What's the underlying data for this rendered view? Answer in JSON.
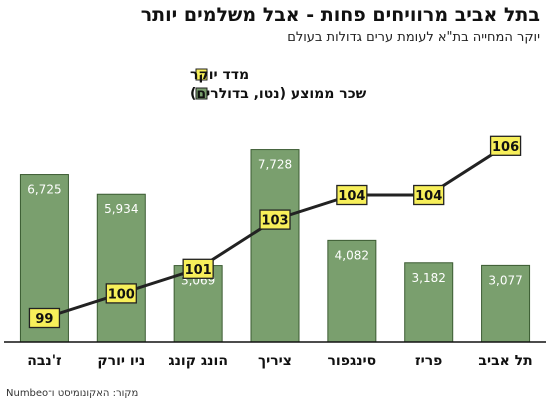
{
  "title": "בתל אביב מרוויחים פחות - אבל משלמים יותר",
  "subtitle": "יוקר המחייה בת\"א לעומת ערים גדולות בעולם",
  "source": "מקור: האקונומיסט ו־Numbeo",
  "colors": {
    "bar": "#7a9f6e",
    "barStroke": "#3b5b32",
    "line": "#222222",
    "box": "#f7ef5a",
    "boxStroke": "#222222"
  },
  "chart_data": {
    "type": "bar",
    "categories": [
      "ז'נבה",
      "ניו יורק",
      "הונג קונג",
      "ציריך",
      "סינגפור",
      "פריז",
      "תל אביב"
    ],
    "series": [
      {
        "name": "שכר ממוצע (נטו, בדולרים)",
        "type": "bar",
        "values": [
          6725,
          5934,
          3069,
          7728,
          4082,
          3182,
          3077
        ],
        "labels": [
          "6,725",
          "5,934",
          "3,069",
          "7,728",
          "4,082",
          "3,182",
          "3,077"
        ]
      },
      {
        "name": "מדד יוקר",
        "type": "line",
        "values": [
          99,
          100,
          101,
          103,
          104,
          104,
          106
        ],
        "labels": [
          "99",
          "100",
          "101",
          "103",
          "104",
          "104",
          "106"
        ]
      }
    ],
    "legend_position": "top-right",
    "grid": false
  }
}
